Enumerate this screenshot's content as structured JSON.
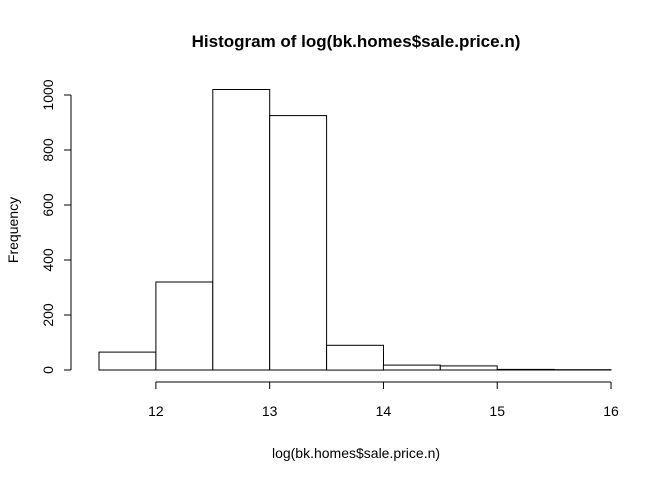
{
  "chart_data": {
    "type": "bar",
    "title": "Histogram of log(bk.homes$sale.price.n)",
    "xlabel": "log(bk.homes$sale.price.n)",
    "ylabel": "Frequency",
    "bins": [
      {
        "from": 11.5,
        "to": 12.0,
        "count": 65
      },
      {
        "from": 12.0,
        "to": 12.5,
        "count": 320
      },
      {
        "from": 12.5,
        "to": 13.0,
        "count": 1020
      },
      {
        "from": 13.0,
        "to": 13.5,
        "count": 925
      },
      {
        "from": 13.5,
        "to": 14.0,
        "count": 90
      },
      {
        "from": 14.0,
        "to": 14.5,
        "count": 18
      },
      {
        "from": 14.5,
        "to": 15.0,
        "count": 15
      },
      {
        "from": 15.0,
        "to": 15.5,
        "count": 2
      },
      {
        "from": 15.5,
        "to": 16.0,
        "count": 1
      }
    ],
    "xlim": [
      11.5,
      16.0
    ],
    "ylim": [
      0,
      1020
    ],
    "x_ticks": [
      12,
      13,
      14,
      15,
      16
    ],
    "y_ticks": [
      0,
      200,
      400,
      600,
      800,
      1000
    ],
    "x_tick_labels": [
      "12",
      "13",
      "14",
      "15",
      "16"
    ],
    "y_tick_labels": [
      "0",
      "200",
      "400",
      "600",
      "800",
      "1000"
    ],
    "grid": false,
    "colors": {
      "bar_fill": "#ffffff",
      "bar_stroke": "#000000"
    }
  }
}
